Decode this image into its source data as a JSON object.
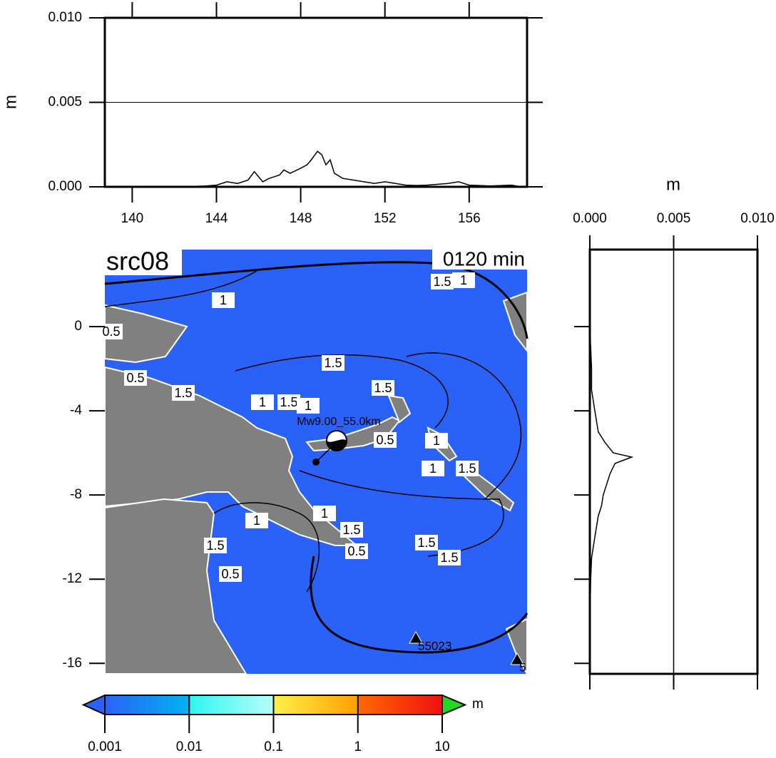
{
  "chart_data": [
    {
      "type": "line",
      "ylabel": "m",
      "xlim": [
        138.7,
        158.75
      ],
      "xticks": [
        140,
        144,
        148,
        152,
        156
      ],
      "ylim": [
        0,
        0.01
      ],
      "yticks": [
        {
          "value": 0,
          "label": "0.000"
        },
        {
          "value": 0.005,
          "label": "0.005"
        },
        {
          "value": 0.01,
          "label": "0.010"
        }
      ],
      "grid": true,
      "color": "#000000",
      "x": [
        139,
        140,
        141,
        142,
        142.5,
        143,
        143.5,
        144,
        144.5,
        145,
        145.5,
        145.8,
        146.2,
        146.5,
        147,
        147.2,
        147.5,
        148,
        148.3,
        148.5,
        148.8,
        149,
        149.2,
        149.4,
        149.6,
        150,
        150.5,
        151,
        151.5,
        152,
        152.5,
        153,
        153.5,
        154,
        155,
        155.5,
        156,
        157,
        158,
        158.5
      ],
      "values": [
        0,
        0,
        0,
        0,
        2e-05,
        3e-05,
        5e-05,
        0.0001,
        0.0003,
        0.0002,
        0.0004,
        0.0009,
        0.0003,
        0.0005,
        0.0007,
        0.001,
        0.0008,
        0.0011,
        0.0013,
        0.0016,
        0.0021,
        0.0019,
        0.0013,
        0.0016,
        0.0008,
        0.0005,
        0.0004,
        0.0003,
        0.0002,
        0.0003,
        0.0002,
        0.0001,
        8e-05,
        0.0001,
        0.0002,
        0.0003,
        0.0001,
        5e-05,
        0.0001,
        0
      ]
    },
    {
      "type": "profile",
      "xlabel": "m",
      "xlim": [
        0,
        0.01
      ],
      "xticks": [
        {
          "value": 0,
          "label": "0.000"
        },
        {
          "value": 0.005,
          "label": "0.005"
        },
        {
          "value": 0.01,
          "label": "0.010"
        }
      ],
      "ylim": [
        -16.5,
        3.66
      ],
      "grid": true,
      "color": "#000000",
      "y": [
        3.5,
        0,
        -2,
        -3,
        -4,
        -5,
        -5.5,
        -6,
        -6.2,
        -6.5,
        -7,
        -7.5,
        -8,
        -8.5,
        -9,
        -9.5,
        -10,
        -11,
        -12,
        -14,
        -16
      ],
      "values": [
        0,
        0,
        0.0001,
        0.0001,
        0.0003,
        0.0005,
        0.0009,
        0.0014,
        0.0025,
        0.0015,
        0.0012,
        0.001,
        0.0008,
        0.0007,
        0.0005,
        0.0004,
        0.0003,
        0.0001,
        5e-05,
        0,
        0
      ]
    },
    {
      "type": "map",
      "title": "src08",
      "annotation": "0120 min",
      "xlim": [
        138.7,
        158.75
      ],
      "ylim": [
        -16.5,
        3.66
      ],
      "yticks": [
        0,
        -4,
        -8,
        -12,
        -16
      ],
      "ocean_color": "#2a62f7",
      "land_color": "#808080",
      "contour_labels": [
        "1.5",
        "1",
        "1",
        "0.5",
        "1.5",
        "0.5",
        "1.5",
        "1",
        "1.5",
        "1",
        "1.5",
        "0.5",
        "1",
        "1",
        "1.5",
        "1",
        "1",
        "1.5",
        "0.5",
        "1.5",
        "1.5",
        "1.5",
        "0.5"
      ],
      "epicenter_label": "Mw9.00_55.0km",
      "stations": [
        "55023",
        "5"
      ]
    },
    {
      "type": "colorbar",
      "label": "m",
      "log": true,
      "xlim": [
        0.001,
        10
      ],
      "xticks": [
        0.001,
        0.01,
        0.1,
        1,
        10
      ],
      "colors": [
        "#2a62f7",
        "#00b4f0",
        "#2ef5f0",
        "#b8fff8",
        "#fff04a",
        "#ffa000",
        "#ff6a00",
        "#f01010"
      ],
      "under_color": "#2a62f7",
      "over_color": "#22d822"
    }
  ]
}
